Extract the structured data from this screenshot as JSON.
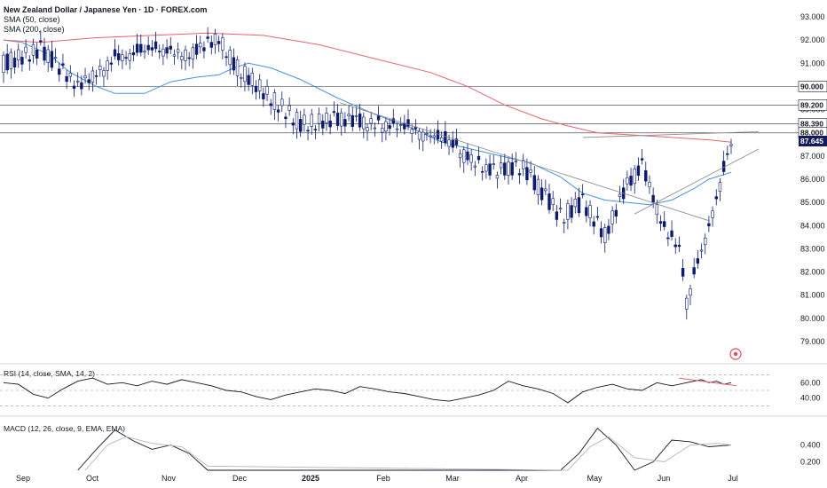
{
  "header": {
    "title": "New Zealand Dollar / Japanese Yen · 1D · FOREX.com",
    "sma50_label": "SMA (50, close)",
    "sma200_label": "SMA (200, close)"
  },
  "rsi_label": "RSI (14, close, SMA, 14, 2)",
  "macd_label": "MACD (12, 26, close, 9, EMA, EMA)",
  "colors": {
    "up": "#ffffff",
    "down": "#0d1b6e",
    "wick": "#0d1b6e",
    "sma50": "#4a8fdb",
    "sma200": "#e8626f",
    "rsi_trend": "#e8626f",
    "level_line": "#555555",
    "trend_line": "#888888",
    "last_price_tag": "#131a5e"
  },
  "chart_data": [
    {
      "type": "line",
      "name": "price",
      "title": "New Zealand Dollar / Japanese Yen · 1D · FOREX.com",
      "x_tick_labels": [
        "Sep",
        "Oct",
        "Nov",
        "Dec",
        "2025",
        "Feb",
        "Mar",
        "Apr",
        "May",
        "Jun",
        "Jul"
      ],
      "y_tick_labels": [
        "93.000",
        "92.000",
        "91.000",
        "90.000",
        "89.000",
        "88.000",
        "87.000",
        "86.000",
        "85.000",
        "84.000",
        "83.000",
        "82.000",
        "81.000",
        "80.000",
        "79.000"
      ],
      "ylim": [
        79.0,
        93.0
      ],
      "series": [
        {
          "name": "SMA (50, close)",
          "points": [
            [
              0,
              92.0
            ],
            [
              5,
              91.9
            ],
            [
              12,
              91.4
            ],
            [
              18,
              90.6
            ],
            [
              25,
              90.0
            ],
            [
              30,
              89.7
            ],
            [
              38,
              89.7
            ],
            [
              45,
              90.2
            ],
            [
              52,
              90.4
            ],
            [
              58,
              90.5
            ],
            [
              62,
              90.8
            ],
            [
              66,
              91.0
            ],
            [
              72,
              90.8
            ],
            [
              80,
              90.3
            ],
            [
              90,
              89.5
            ],
            [
              100,
              88.8
            ],
            [
              110,
              88.2
            ],
            [
              118,
              87.6
            ],
            [
              126,
              87.3
            ],
            [
              134,
              87.0
            ],
            [
              142,
              86.7
            ],
            [
              150,
              86.1
            ],
            [
              156,
              85.4
            ],
            [
              162,
              85.1
            ],
            [
              168,
              85.0
            ],
            [
              174,
              84.9
            ],
            [
              180,
              85.1
            ],
            [
              186,
              85.6
            ],
            [
              190,
              86.0
            ],
            [
              196,
              86.3
            ]
          ]
        },
        {
          "name": "SMA (200, close)",
          "points": [
            [
              0,
              92.0
            ],
            [
              10,
              91.9
            ],
            [
              25,
              92.1
            ],
            [
              40,
              92.2
            ],
            [
              55,
              92.3
            ],
            [
              70,
              92.2
            ],
            [
              85,
              91.8
            ],
            [
              100,
              91.2
            ],
            [
              115,
              90.6
            ],
            [
              125,
              90.0
            ],
            [
              135,
              89.2
            ],
            [
              145,
              88.6
            ],
            [
              152,
              88.3
            ],
            [
              160,
              88.0
            ],
            [
              170,
              87.9
            ],
            [
              180,
              87.8
            ],
            [
              190,
              87.7
            ],
            [
              196,
              87.6
            ]
          ]
        }
      ],
      "horizontal_levels": [
        90.0,
        89.2,
        88.39,
        88.0
      ],
      "level_labels": [
        "90.000",
        "89.200",
        "88.390",
        "88.000"
      ],
      "last_price": 87.645,
      "last_price_label": "87.645",
      "annotations": [
        "downtrend line",
        "rising support line",
        "flat resistance line"
      ]
    },
    {
      "type": "line",
      "name": "RSI",
      "title": "RSI (14, close, SMA, 14, 2)",
      "y_tick_labels": [
        "60.00",
        "40.00"
      ],
      "levels": [
        70,
        50,
        30
      ],
      "ylim": [
        20,
        80
      ],
      "series": [
        {
          "name": "RSI",
          "points": [
            [
              0,
              60
            ],
            [
              4,
              58
            ],
            [
              8,
              45
            ],
            [
              12,
              40
            ],
            [
              16,
              52
            ],
            [
              20,
              62
            ],
            [
              24,
              66
            ],
            [
              28,
              58
            ],
            [
              32,
              60
            ],
            [
              36,
              56
            ],
            [
              40,
              62
            ],
            [
              44,
              58
            ],
            [
              48,
              64
            ],
            [
              52,
              60
            ],
            [
              56,
              56
            ],
            [
              60,
              50
            ],
            [
              64,
              48
            ],
            [
              68,
              42
            ],
            [
              72,
              38
            ],
            [
              76,
              44
            ],
            [
              80,
              48
            ],
            [
              84,
              52
            ],
            [
              88,
              50
            ],
            [
              92,
              46
            ],
            [
              96,
              55
            ],
            [
              100,
              52
            ],
            [
              104,
              48
            ],
            [
              108,
              46
            ],
            [
              112,
              42
            ],
            [
              116,
              38
            ],
            [
              120,
              36
            ],
            [
              124,
              40
            ],
            [
              128,
              44
            ],
            [
              132,
              50
            ],
            [
              136,
              62
            ],
            [
              140,
              56
            ],
            [
              144,
              52
            ],
            [
              148,
              46
            ],
            [
              152,
              34
            ],
            [
              156,
              48
            ],
            [
              160,
              54
            ],
            [
              164,
              58
            ],
            [
              168,
              52
            ],
            [
              172,
              50
            ],
            [
              176,
              60
            ],
            [
              180,
              56
            ],
            [
              184,
              60
            ],
            [
              188,
              64
            ],
            [
              190,
              60
            ],
            [
              192,
              62
            ],
            [
              194,
              58
            ],
            [
              196,
              60
            ]
          ]
        }
      ]
    },
    {
      "type": "line",
      "name": "MACD",
      "title": "MACD (12, 26, close, 9, EMA, EMA)",
      "y_tick_labels": [
        "0.400",
        "0.200"
      ],
      "ylim": [
        0.1,
        0.65
      ],
      "series": [
        {
          "name": "MACD",
          "points": [
            [
              20,
              0.1
            ],
            [
              25,
              0.35
            ],
            [
              30,
              0.58
            ],
            [
              35,
              0.45
            ],
            [
              40,
              0.35
            ],
            [
              45,
              0.4
            ],
            [
              50,
              0.3
            ],
            [
              55,
              0.1
            ],
            [
              150,
              0.1
            ],
            [
              155,
              0.3
            ],
            [
              160,
              0.6
            ],
            [
              165,
              0.4
            ],
            [
              170,
              0.1
            ],
            [
              175,
              0.2
            ],
            [
              180,
              0.46
            ],
            [
              185,
              0.44
            ],
            [
              190,
              0.38
            ],
            [
              196,
              0.4
            ]
          ]
        },
        {
          "name": "Signal",
          "points": [
            [
              22,
              0.1
            ],
            [
              28,
              0.4
            ],
            [
              33,
              0.5
            ],
            [
              40,
              0.42
            ],
            [
              48,
              0.38
            ],
            [
              55,
              0.15
            ],
            [
              152,
              0.1
            ],
            [
              158,
              0.38
            ],
            [
              163,
              0.5
            ],
            [
              170,
              0.25
            ],
            [
              178,
              0.2
            ],
            [
              185,
              0.4
            ],
            [
              192,
              0.42
            ],
            [
              196,
              0.4
            ]
          ]
        }
      ]
    }
  ]
}
